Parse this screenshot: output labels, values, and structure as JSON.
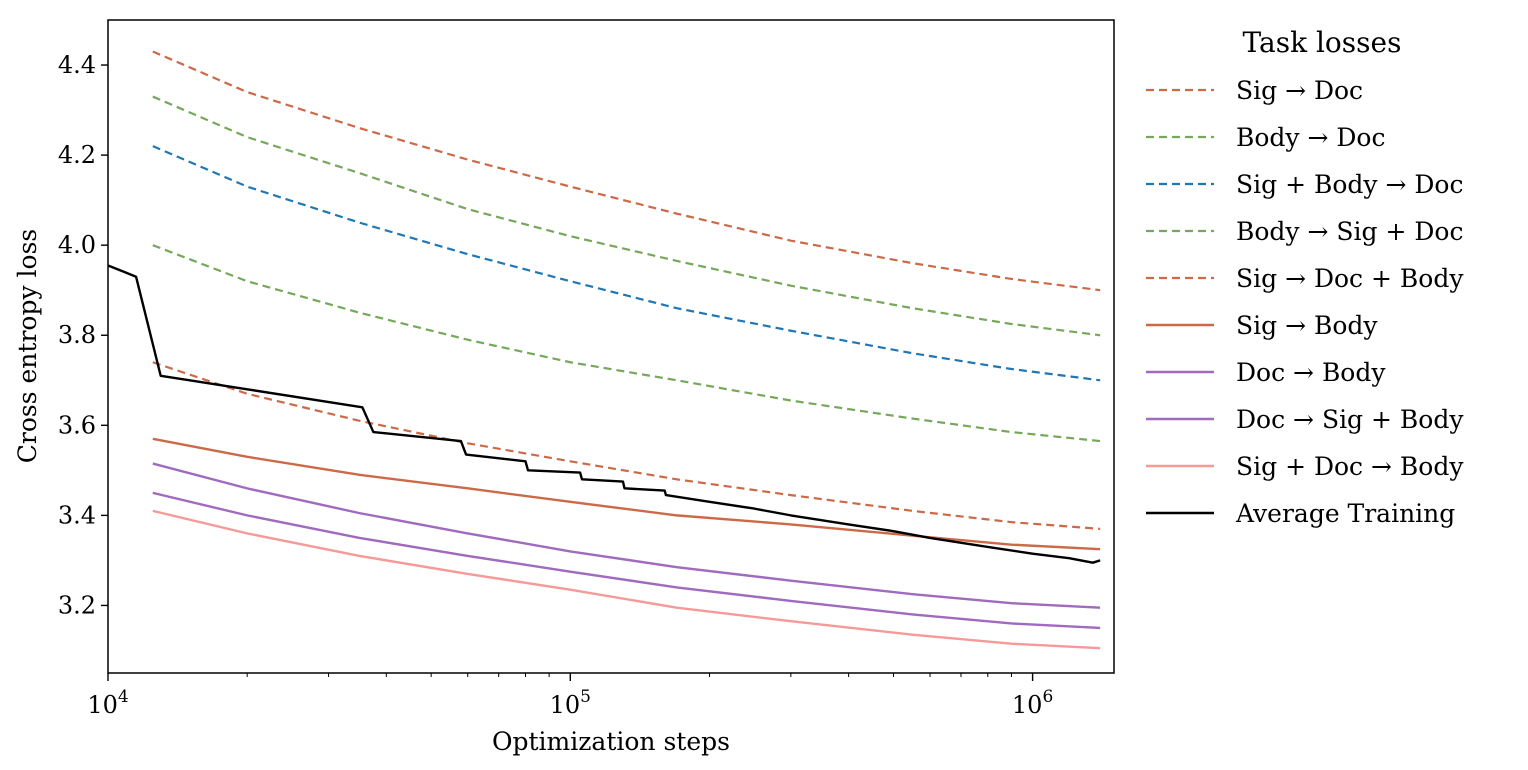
{
  "chart_data": {
    "type": "line",
    "xscale": "log",
    "xlim": [
      10000,
      1500000
    ],
    "ylim": [
      3.05,
      4.5
    ],
    "xlabel": "Optimization steps",
    "ylabel": "Cross entropy loss",
    "xticks": [
      {
        "value": 10000,
        "base": "10",
        "exp": "4"
      },
      {
        "value": 100000,
        "base": "10",
        "exp": "5"
      },
      {
        "value": 1000000,
        "base": "10",
        "exp": "6"
      }
    ],
    "yticks": [
      {
        "value": 3.2,
        "label": "3.2"
      },
      {
        "value": 3.4,
        "label": "3.4"
      },
      {
        "value": 3.6,
        "label": "3.6"
      },
      {
        "value": 3.8,
        "label": "3.8"
      },
      {
        "value": 4.0,
        "label": "4.0"
      },
      {
        "value": 4.2,
        "label": "4.2"
      },
      {
        "value": 4.4,
        "label": "4.4"
      }
    ],
    "legend": {
      "title": "Task losses",
      "position": "outside-right"
    },
    "series": [
      {
        "name": "Sig → Doc",
        "color": "#cc6a48",
        "style": "dashed",
        "x": [
          12500,
          20000,
          35000,
          60000,
          100000,
          170000,
          300000,
          550000,
          900000,
          1400000
        ],
        "y": [
          4.43,
          4.34,
          4.26,
          4.19,
          4.13,
          4.07,
          4.01,
          3.96,
          3.925,
          3.9
        ]
      },
      {
        "name": "Body → Doc",
        "color": "#76a75a",
        "style": "dashed",
        "x": [
          12500,
          20000,
          35000,
          60000,
          100000,
          170000,
          300000,
          550000,
          900000,
          1400000
        ],
        "y": [
          4.33,
          4.24,
          4.16,
          4.08,
          4.02,
          3.965,
          3.91,
          3.86,
          3.825,
          3.8
        ]
      },
      {
        "name": "Sig + Body → Doc",
        "color": "#1f77b4",
        "style": "dashed",
        "x": [
          12500,
          20000,
          35000,
          60000,
          100000,
          170000,
          300000,
          550000,
          900000,
          1400000
        ],
        "y": [
          4.22,
          4.13,
          4.05,
          3.98,
          3.92,
          3.86,
          3.81,
          3.76,
          3.725,
          3.7
        ]
      },
      {
        "name": "Body → Sig + Doc",
        "color": "#76a75a",
        "style": "dashed",
        "x": [
          12500,
          20000,
          35000,
          60000,
          100000,
          170000,
          300000,
          550000,
          900000,
          1400000
        ],
        "y": [
          4.0,
          3.92,
          3.85,
          3.79,
          3.74,
          3.7,
          3.655,
          3.615,
          3.585,
          3.565
        ]
      },
      {
        "name": "Sig → Doc + Body",
        "color": "#cc6a48",
        "style": "dashed",
        "x": [
          12500,
          20000,
          35000,
          60000,
          100000,
          170000,
          300000,
          550000,
          900000,
          1400000
        ],
        "y": [
          3.74,
          3.67,
          3.61,
          3.56,
          3.52,
          3.48,
          3.445,
          3.41,
          3.385,
          3.37
        ]
      },
      {
        "name": "Sig → Body",
        "color": "#cc6a48",
        "style": "solid",
        "x": [
          12500,
          20000,
          35000,
          60000,
          100000,
          170000,
          300000,
          550000,
          900000,
          1400000
        ],
        "y": [
          3.57,
          3.53,
          3.49,
          3.46,
          3.43,
          3.4,
          3.38,
          3.355,
          3.335,
          3.325
        ]
      },
      {
        "name": "Doc → Body",
        "color": "#a06abe",
        "style": "solid",
        "x": [
          12500,
          20000,
          35000,
          60000,
          100000,
          170000,
          300000,
          550000,
          900000,
          1400000
        ],
        "y": [
          3.515,
          3.46,
          3.405,
          3.36,
          3.32,
          3.285,
          3.255,
          3.225,
          3.205,
          3.195
        ]
      },
      {
        "name": "Doc → Sig + Body",
        "color": "#a06abe",
        "style": "solid",
        "x": [
          12500,
          20000,
          35000,
          60000,
          100000,
          170000,
          300000,
          550000,
          900000,
          1400000
        ],
        "y": [
          3.45,
          3.4,
          3.35,
          3.31,
          3.275,
          3.24,
          3.21,
          3.18,
          3.16,
          3.15
        ]
      },
      {
        "name": "Sig + Doc → Body",
        "color": "#f59a98",
        "style": "solid",
        "x": [
          12500,
          20000,
          35000,
          60000,
          100000,
          170000,
          300000,
          550000,
          900000,
          1400000
        ],
        "y": [
          3.41,
          3.36,
          3.31,
          3.27,
          3.235,
          3.195,
          3.165,
          3.135,
          3.115,
          3.105
        ]
      },
      {
        "name": "Average Training",
        "color": "#000000",
        "style": "solid",
        "x": [
          10000,
          11500,
          13000,
          20000,
          35500,
          37500,
          58000,
          59500,
          80000,
          81000,
          105000,
          106000,
          130000,
          131000,
          160000,
          161000,
          200000,
          250000,
          300000,
          400000,
          500000,
          600000,
          800000,
          1000000,
          1200000,
          1350000,
          1400000
        ],
        "y": [
          3.955,
          3.93,
          3.71,
          3.68,
          3.64,
          3.585,
          3.565,
          3.535,
          3.52,
          3.5,
          3.495,
          3.48,
          3.475,
          3.46,
          3.455,
          3.445,
          3.43,
          3.415,
          3.4,
          3.38,
          3.365,
          3.35,
          3.33,
          3.315,
          3.305,
          3.295,
          3.3
        ]
      }
    ]
  }
}
